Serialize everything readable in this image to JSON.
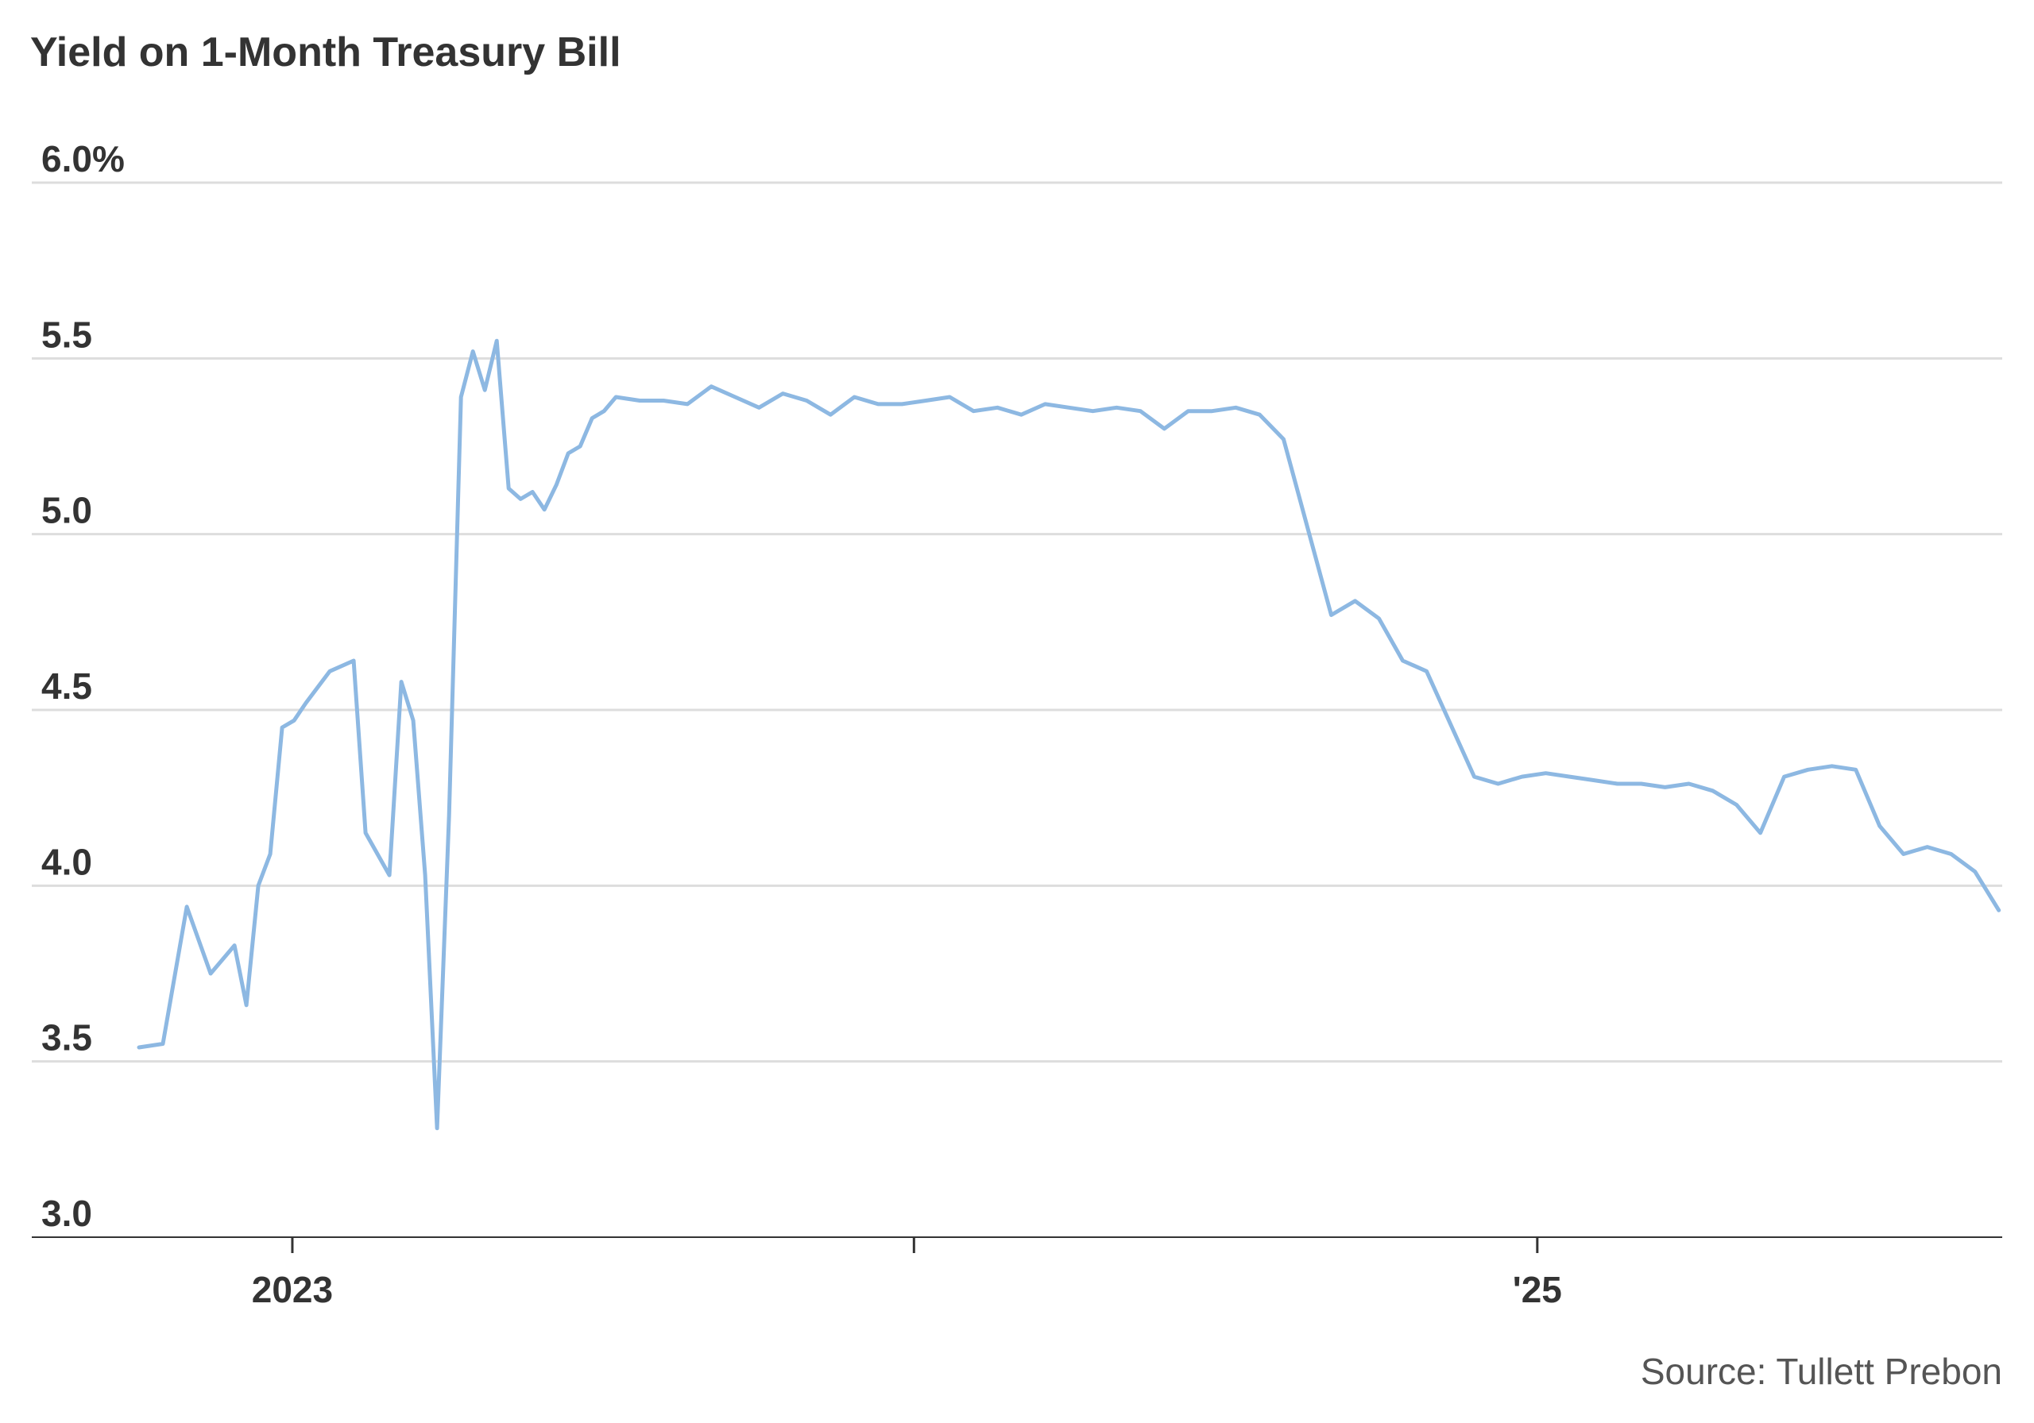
{
  "chart_data": {
    "type": "line",
    "title": "Yield on 1-Month Treasury Bill",
    "source": "Source: Tullett Prebon",
    "y_ticks": [
      {
        "value": 6.0,
        "label": "6.0%"
      },
      {
        "value": 5.5,
        "label": "5.5"
      },
      {
        "value": 5.0,
        "label": "5.0"
      },
      {
        "value": 4.5,
        "label": "4.5"
      },
      {
        "value": 4.0,
        "label": "4.0"
      },
      {
        "value": 3.5,
        "label": "3.5"
      },
      {
        "value": 3.0,
        "label": "3.0"
      }
    ],
    "ylim": [
      3.0,
      6.0
    ],
    "x_ticks": [
      {
        "date": "2023-01-01",
        "label": "2023"
      },
      {
        "date": "2024-01-01",
        "label": ""
      },
      {
        "date": "2025-01-01",
        "label": "'25"
      }
    ],
    "xlim": [
      "2022-08-01",
      "2025-10-01"
    ],
    "grid": true,
    "colors": {
      "line": "#8db8e2",
      "grid": "#dddddd",
      "axis": "#333333",
      "text": "#333333",
      "source": "#555555"
    },
    "series": [
      {
        "x": [
          "2022-10-03",
          "2022-10-17",
          "2022-10-31",
          "2022-11-14",
          "2022-11-28",
          "2022-12-05",
          "2022-12-12",
          "2022-12-19",
          "2022-12-26",
          "2023-01-02",
          "2023-01-09",
          "2023-01-23",
          "2023-02-06",
          "2023-02-13",
          "2023-02-27",
          "2023-03-06",
          "2023-03-13",
          "2023-03-20",
          "2023-03-27",
          "2023-04-03",
          "2023-04-10",
          "2023-04-17",
          "2023-04-24",
          "2023-05-01",
          "2023-05-08",
          "2023-05-15",
          "2023-05-22",
          "2023-05-29",
          "2023-06-05",
          "2023-06-12",
          "2023-06-19",
          "2023-06-26",
          "2023-07-03",
          "2023-07-10",
          "2023-07-24",
          "2023-08-07",
          "2023-08-21",
          "2023-09-04",
          "2023-09-18",
          "2023-10-02",
          "2023-10-16",
          "2023-10-30",
          "2023-11-13",
          "2023-11-27",
          "2023-12-11",
          "2023-12-25",
          "2024-01-08",
          "2024-01-22",
          "2024-02-05",
          "2024-02-19",
          "2024-03-04",
          "2024-03-18",
          "2024-04-01",
          "2024-04-15",
          "2024-04-29",
          "2024-05-13",
          "2024-05-27",
          "2024-06-10",
          "2024-06-24",
          "2024-07-08",
          "2024-07-22",
          "2024-08-05",
          "2024-08-19",
          "2024-09-02",
          "2024-09-16",
          "2024-09-30",
          "2024-10-14",
          "2024-10-28",
          "2024-11-11",
          "2024-11-25",
          "2024-12-09",
          "2024-12-23",
          "2025-01-06",
          "2025-01-20",
          "2025-02-03",
          "2025-02-17",
          "2025-03-03",
          "2025-03-17",
          "2025-03-31",
          "2025-04-14",
          "2025-04-28",
          "2025-05-12",
          "2025-05-26",
          "2025-06-09",
          "2025-06-23",
          "2025-07-07",
          "2025-07-21",
          "2025-08-04",
          "2025-08-18",
          "2025-09-01",
          "2025-09-15",
          "2025-09-29"
        ],
        "values": [
          3.54,
          3.55,
          3.94,
          3.75,
          3.83,
          3.66,
          4.0,
          4.09,
          4.45,
          4.47,
          4.52,
          4.61,
          4.64,
          4.15,
          4.03,
          4.58,
          4.47,
          4.03,
          3.31,
          4.2,
          5.39,
          5.52,
          5.41,
          5.55,
          5.13,
          5.1,
          5.12,
          5.07,
          5.14,
          5.23,
          5.25,
          5.33,
          5.35,
          5.39,
          5.38,
          5.38,
          5.37,
          5.42,
          5.39,
          5.36,
          5.4,
          5.38,
          5.34,
          5.39,
          5.37,
          5.37,
          5.38,
          5.39,
          5.35,
          5.36,
          5.34,
          5.37,
          5.36,
          5.35,
          5.36,
          5.35,
          5.3,
          5.35,
          5.35,
          5.36,
          5.34,
          5.27,
          5.02,
          4.77,
          4.81,
          4.76,
          4.64,
          4.61,
          4.46,
          4.31,
          4.29,
          4.31,
          4.32,
          4.31,
          4.3,
          4.29,
          4.29,
          4.28,
          4.29,
          4.27,
          4.23,
          4.15,
          4.31,
          4.33,
          4.34,
          4.33,
          4.17,
          4.09,
          4.11,
          4.09,
          4.04,
          3.93
        ]
      }
    ]
  }
}
